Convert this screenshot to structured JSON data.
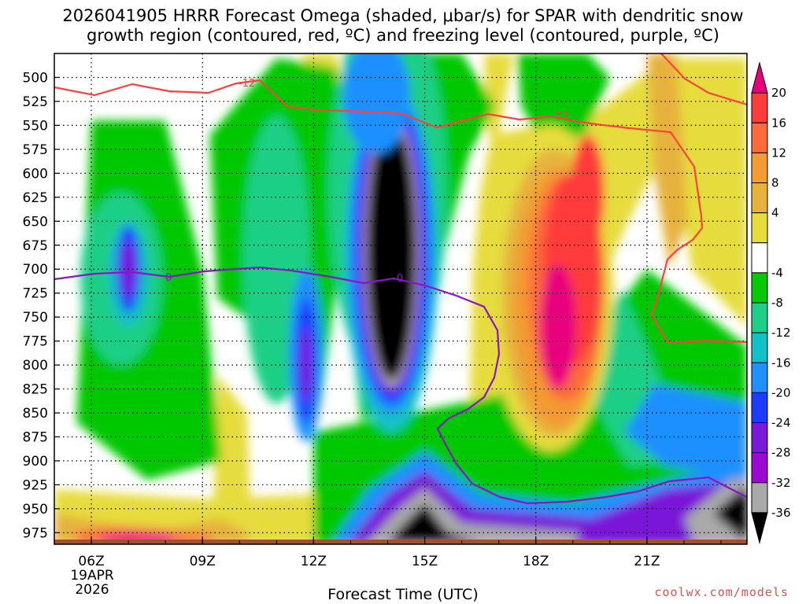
{
  "title_line1": "2026041905 HRRR Forecast Omega (shaded, μbar/s) for SPAR with dendritic snow",
  "title_line2": "growth region (contoured, red, ºC) and freezing level (contoured, purple, ºC)",
  "xlabel": "Forecast Time (UTC)",
  "credit": "coolwx.com/models",
  "date_label": [
    "19APR",
    "2026"
  ],
  "chart_data": {
    "type": "heatmap",
    "title": "2026041905 HRRR Forecast Omega (shaded, μbar/s) for SPAR with dendritic snow growth region (contoured, red, ºC) and freezing level (contoured, purple, ºC)",
    "xlabel": "Forecast Time (UTC)",
    "ylabel": "",
    "x_range_hours": [
      5,
      23.7
    ],
    "y_range_hpa": [
      475,
      987
    ],
    "x_ticks": [
      {
        "hour": 6,
        "label": "06Z"
      },
      {
        "hour": 9,
        "label": "09Z"
      },
      {
        "hour": 12,
        "label": "12Z"
      },
      {
        "hour": 15,
        "label": "15Z"
      },
      {
        "hour": 18,
        "label": "18Z"
      },
      {
        "hour": 21,
        "label": "21Z"
      }
    ],
    "y_ticks": [
      500,
      525,
      550,
      575,
      600,
      625,
      650,
      675,
      700,
      725,
      750,
      775,
      800,
      825,
      850,
      875,
      900,
      925,
      950,
      975
    ],
    "colorbar": {
      "labels": [
        "20",
        "16",
        "12",
        "8",
        "4",
        "-4",
        "-8",
        "-12",
        "-16",
        "-20",
        "-24",
        "-28",
        "-32",
        "-36"
      ],
      "colors": [
        "#e8007d",
        "#ff3b3b",
        "#ff6a3a",
        "#f39a32",
        "#e6b23c",
        "#e6dc3c",
        "#ffffff",
        "#06c806",
        "#1fcf87",
        "#14c0c8",
        "#1e90ff",
        "#1e3cff",
        "#7a19d8",
        "#9b0ad2",
        "#a9a9a9",
        "#000000"
      ]
    },
    "contour_labels": {
      "dgz_upper": "-12",
      "dgz_lower": "-12",
      "freezing": "0"
    },
    "fields": [
      {
        "name": "sink_core_mid",
        "x_center": 14.1,
        "p_center": 680,
        "rx_hours": 1.05,
        "ry_hpa": 170,
        "amplitude": -48
      },
      {
        "name": "sink_core_low",
        "x_center": 14.6,
        "p_center": 975,
        "rx_hours": 2.2,
        "ry_hpa": 40,
        "amplitude": -42
      },
      {
        "name": "lift_core",
        "x_center": 18.4,
        "p_center": 720,
        "rx_hours": 1.6,
        "ry_hpa": 130,
        "amplitude": 26
      }
    ]
  }
}
